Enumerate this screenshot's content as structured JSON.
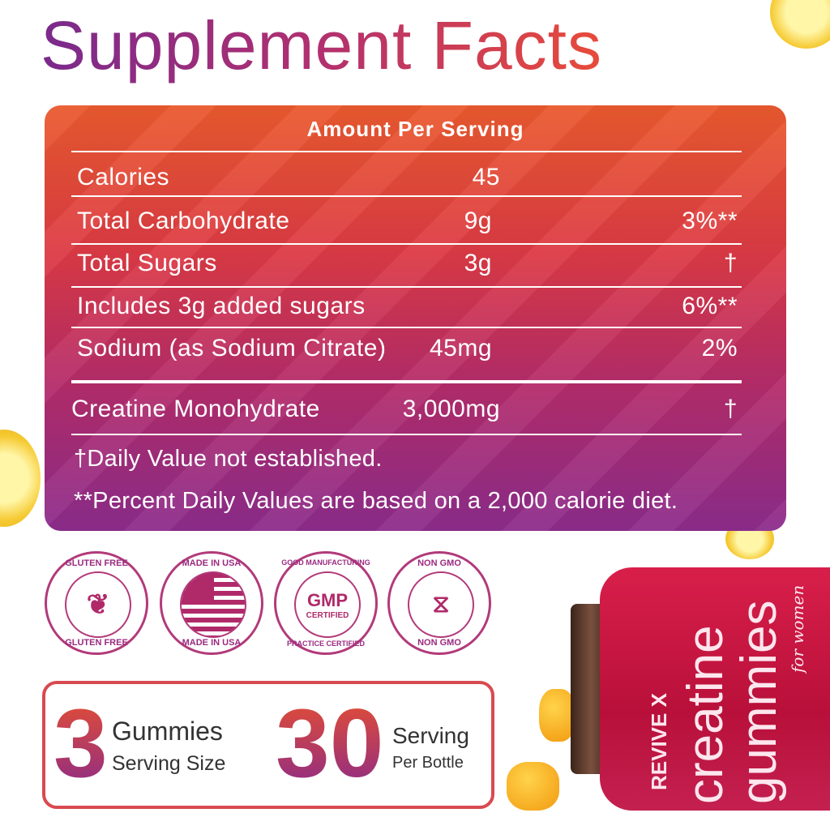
{
  "title": "Supplement Facts",
  "panel": {
    "header": "Amount Per Serving",
    "rows": [
      {
        "name": "Calories",
        "amount": "45",
        "dv": ""
      },
      {
        "name": "Total Carbohydrate",
        "amount": "9g",
        "dv": "3%**"
      },
      {
        "name": "Total Sugars",
        "amount": "3g",
        "dv": "†"
      },
      {
        "name": "Includes 3g added sugars",
        "amount": "",
        "dv": "6%**"
      },
      {
        "name": "Sodium (as Sodium Citrate)",
        "amount": "45mg",
        "dv": "2%"
      },
      {
        "name": "Creatine Monohydrate",
        "amount": "3,000mg",
        "dv": "†"
      }
    ],
    "footnotes": [
      "†Daily Value not established.",
      "**Percent Daily Values are based on a 2,000 calorie diet."
    ]
  },
  "badges": [
    {
      "top": "GLUTEN FREE",
      "bottom": "GLUTEN FREE",
      "icon": "wheat-icon"
    },
    {
      "top": "MADE IN USA",
      "bottom": "MADE IN USA",
      "icon": "us-flag-icon"
    },
    {
      "top": "GOOD MANUFACTURING",
      "bottom": "PRACTICE CERTIFIED",
      "center1": "GMP",
      "center2": "CERTIFIED"
    },
    {
      "top": "NON GMO",
      "bottom": "NON GMO",
      "icon": "dna-icon"
    }
  ],
  "serving": {
    "count": "3",
    "count_label1": "Gummies",
    "count_label2": "Serving Size",
    "servings": "30",
    "servings_label1": "Serving",
    "servings_label2": "Per Bottle"
  },
  "bottle": {
    "brand": "REVIVE X",
    "product1": "creatine",
    "product2": "gummies",
    "tagline": "for women"
  },
  "colors": {
    "panel_top": "#ea5a2e",
    "panel_bottom": "#8c2c8c",
    "title_start": "#7a2a8c",
    "title_end": "#e84b3a",
    "bottle": "#c8163f"
  }
}
